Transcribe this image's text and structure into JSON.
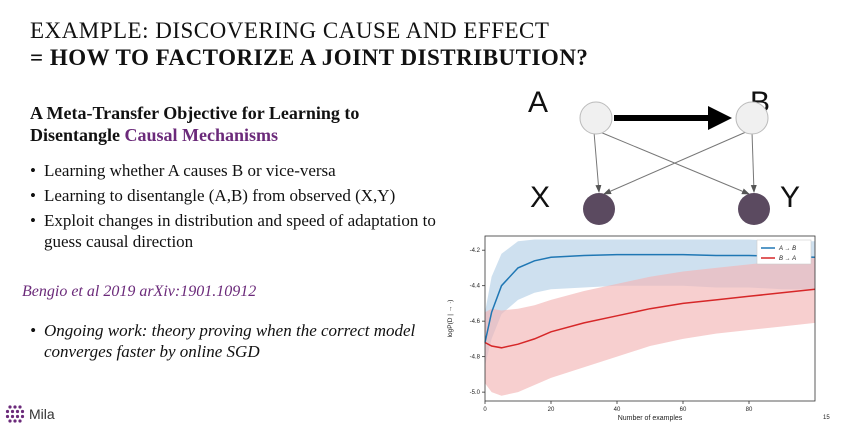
{
  "slide": {
    "title_line1": "EXAMPLE: DISCOVERING CAUSE AND EFFECT",
    "title_line2": "= HOW TO FACTORIZE A JOINT DISTRIBUTION?",
    "paper_title_prefix": "A Meta-Transfer Objective for Learning to Disentangle ",
    "paper_title_accent": "Causal Mechanisms",
    "bullets": [
      "Learning whether A causes B or vice-versa",
      "Learning to disentangle (A,B) from observed (X,Y)",
      "Exploit changes in distribution and speed of adaptation to guess causal direction"
    ],
    "citation": "Bengio et al 2019 arXiv:1901.10912",
    "ongoing": "Ongoing work: theory proving when the correct model converges faster by online SGD",
    "bullet_glyph": "•",
    "logo_text": "Mila"
  },
  "diagram": {
    "nodes": [
      "A",
      "B",
      "X",
      "Y"
    ]
  },
  "colors": {
    "accent": "#6b2a7a",
    "series_ab": "#1f77b4",
    "series_ba": "#d62728",
    "band_ab": "#b3d0e6",
    "band_ba": "#f2b5b5",
    "latent_node": "#f0f0f0",
    "observed_node": "#5b4a60"
  },
  "chart_data": {
    "type": "line",
    "xlabel": "Number of examples",
    "ylabel": "logP(D | → ·)",
    "xlim": [
      0,
      100
    ],
    "ylim": [
      -5.05,
      -4.12
    ],
    "x_ticks": [
      "0",
      "20",
      "40",
      "60",
      "80"
    ],
    "x_extra_label": "15",
    "y_ticks": [
      "-4.2",
      "-4.4",
      "-4.6",
      "-4.8",
      "-5.0"
    ],
    "legend_position": "top-right",
    "x": [
      0,
      2,
      5,
      10,
      15,
      20,
      30,
      40,
      50,
      60,
      70,
      80,
      90,
      100
    ],
    "series": [
      {
        "name": "A → B",
        "legend": "A → B",
        "values": [
          -4.72,
          -4.55,
          -4.4,
          -4.3,
          -4.26,
          -4.24,
          -4.23,
          -4.225,
          -4.225,
          -4.225,
          -4.23,
          -4.23,
          -4.235,
          -4.24
        ],
        "lower": [
          -4.85,
          -4.7,
          -4.56,
          -4.48,
          -4.44,
          -4.42,
          -4.41,
          -4.4,
          -4.4,
          -4.4,
          -4.41,
          -4.41,
          -4.42,
          -4.42
        ],
        "upper": [
          -4.55,
          -4.35,
          -4.22,
          -4.15,
          -4.14,
          -4.14,
          -4.14,
          -4.14,
          -4.14,
          -4.14,
          -4.14,
          -4.14,
          -4.15,
          -4.15
        ]
      },
      {
        "name": "B → A",
        "legend": "B → A",
        "values": [
          -4.72,
          -4.74,
          -4.75,
          -4.73,
          -4.7,
          -4.66,
          -4.61,
          -4.57,
          -4.53,
          -4.5,
          -4.48,
          -4.46,
          -4.44,
          -4.42
        ],
        "lower": [
          -4.95,
          -5.0,
          -5.02,
          -5.0,
          -4.96,
          -4.92,
          -4.86,
          -4.8,
          -4.74,
          -4.7,
          -4.67,
          -4.65,
          -4.63,
          -4.61
        ],
        "upper": [
          -4.55,
          -4.53,
          -4.54,
          -4.53,
          -4.51,
          -4.48,
          -4.43,
          -4.39,
          -4.35,
          -4.32,
          -4.3,
          -4.28,
          -4.26,
          -4.24
        ]
      }
    ]
  }
}
